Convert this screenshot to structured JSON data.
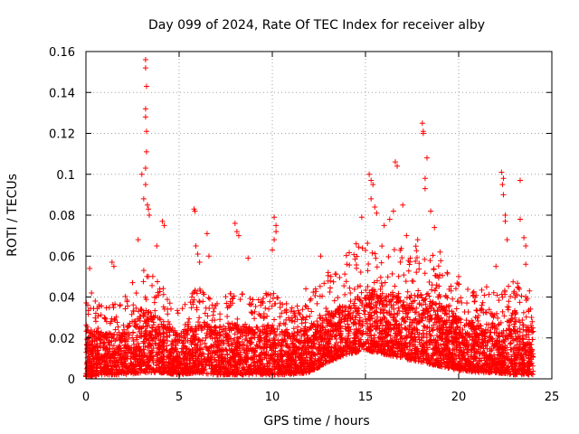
{
  "chart_data": {
    "type": "scatter",
    "title": "Day 099 of 2024, Rate Of TEC Index for receiver alby",
    "xlabel": "GPS time / hours",
    "ylabel": "ROTI / TECUs",
    "xlim": [
      0,
      25
    ],
    "ylim": [
      0,
      0.16
    ],
    "xticks": [
      0,
      5,
      10,
      15,
      20,
      25
    ],
    "xtick_labels": [
      "0",
      "5",
      "10",
      "15",
      "20",
      "25"
    ],
    "yticks": [
      0,
      0.02,
      0.04,
      0.06,
      0.08,
      0.1,
      0.12,
      0.14,
      0.16
    ],
    "ytick_labels": [
      "0",
      "0.02",
      "0.04",
      "0.06",
      "0.08",
      "0.1",
      "0.12",
      "0.14",
      "0.16"
    ],
    "grid": true,
    "marker": "+",
    "marker_color": "#ff0000",
    "series": [
      {
        "name": "ROTI",
        "points": [
          [
            0.2,
            0.054
          ],
          [
            0.3,
            0.042
          ],
          [
            0.5,
            0.038
          ],
          [
            1.0,
            0.03
          ],
          [
            1.4,
            0.057
          ],
          [
            1.5,
            0.055
          ],
          [
            2.5,
            0.047
          ],
          [
            2.8,
            0.068
          ],
          [
            3.0,
            0.1
          ],
          [
            3.1,
            0.088
          ],
          [
            3.2,
            0.156
          ],
          [
            3.2,
            0.152
          ],
          [
            3.25,
            0.143
          ],
          [
            3.2,
            0.132
          ],
          [
            3.2,
            0.128
          ],
          [
            3.25,
            0.121
          ],
          [
            3.25,
            0.111
          ],
          [
            3.2,
            0.103
          ],
          [
            3.2,
            0.095
          ],
          [
            3.3,
            0.085
          ],
          [
            3.35,
            0.083
          ],
          [
            3.4,
            0.08
          ],
          [
            3.8,
            0.065
          ],
          [
            4.1,
            0.077
          ],
          [
            4.2,
            0.075
          ],
          [
            5.8,
            0.083
          ],
          [
            5.85,
            0.082
          ],
          [
            5.9,
            0.065
          ],
          [
            6.0,
            0.061
          ],
          [
            6.1,
            0.057
          ],
          [
            6.5,
            0.071
          ],
          [
            6.6,
            0.06
          ],
          [
            8.0,
            0.076
          ],
          [
            8.1,
            0.072
          ],
          [
            8.2,
            0.07
          ],
          [
            8.7,
            0.059
          ],
          [
            10.0,
            0.063
          ],
          [
            10.1,
            0.079
          ],
          [
            10.2,
            0.075
          ],
          [
            10.2,
            0.072
          ],
          [
            10.1,
            0.068
          ],
          [
            11.8,
            0.044
          ],
          [
            12.6,
            0.06
          ],
          [
            13.0,
            0.052
          ],
          [
            14.0,
            0.056
          ],
          [
            14.5,
            0.066
          ],
          [
            14.8,
            0.079
          ],
          [
            15.2,
            0.1
          ],
          [
            15.3,
            0.097
          ],
          [
            15.4,
            0.095
          ],
          [
            15.3,
            0.088
          ],
          [
            15.5,
            0.084
          ],
          [
            15.6,
            0.081
          ],
          [
            16.0,
            0.075
          ],
          [
            16.3,
            0.078
          ],
          [
            16.5,
            0.082
          ],
          [
            16.6,
            0.106
          ],
          [
            16.7,
            0.104
          ],
          [
            17.0,
            0.085
          ],
          [
            17.2,
            0.07
          ],
          [
            17.8,
            0.068
          ],
          [
            18.05,
            0.125
          ],
          [
            18.1,
            0.121
          ],
          [
            18.1,
            0.12
          ],
          [
            18.2,
            0.098
          ],
          [
            18.2,
            0.093
          ],
          [
            18.3,
            0.108
          ],
          [
            18.5,
            0.082
          ],
          [
            18.7,
            0.074
          ],
          [
            19.0,
            0.062
          ],
          [
            20.0,
            0.05
          ],
          [
            21.5,
            0.045
          ],
          [
            22.0,
            0.055
          ],
          [
            22.3,
            0.101
          ],
          [
            22.4,
            0.098
          ],
          [
            22.35,
            0.095
          ],
          [
            22.4,
            0.09
          ],
          [
            22.5,
            0.08
          ],
          [
            22.5,
            0.077
          ],
          [
            22.6,
            0.068
          ],
          [
            23.3,
            0.097
          ],
          [
            23.3,
            0.078
          ],
          [
            23.5,
            0.069
          ],
          [
            23.6,
            0.065
          ],
          [
            23.6,
            0.056
          ],
          [
            23.8,
            0.043
          ]
        ],
        "envelope": {
          "x": [
            0,
            1,
            2,
            3,
            4,
            5,
            6,
            7,
            8,
            9,
            10,
            11,
            12,
            13,
            14,
            15,
            16,
            17,
            18,
            19,
            20,
            21,
            22,
            23,
            24
          ],
          "upper": [
            0.025,
            0.022,
            0.024,
            0.035,
            0.03,
            0.022,
            0.028,
            0.026,
            0.027,
            0.025,
            0.027,
            0.022,
            0.026,
            0.032,
            0.038,
            0.045,
            0.042,
            0.04,
            0.043,
            0.038,
            0.03,
            0.027,
            0.028,
            0.03,
            0.027
          ],
          "lower": [
            0.001,
            0.002,
            0.002,
            0.003,
            0.003,
            0.002,
            0.003,
            0.002,
            0.002,
            0.002,
            0.002,
            0.002,
            0.003,
            0.008,
            0.012,
            0.014,
            0.012,
            0.01,
            0.008,
            0.006,
            0.004,
            0.003,
            0.003,
            0.002,
            0.002
          ]
        }
      }
    ]
  }
}
